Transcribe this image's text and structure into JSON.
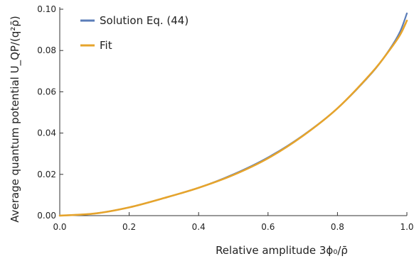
{
  "chart_data": {
    "type": "line",
    "xlabel": "Relative amplitude  3ϕ₀/ρ̄",
    "ylabel": "Average quantum potential  U_QP/(q²ρ̄)",
    "xlim": [
      0.0,
      1.0
    ],
    "ylim": [
      0.0,
      0.1
    ],
    "xticks": [
      "0.0",
      "0.2",
      "0.4",
      "0.6",
      "0.8",
      "1.0"
    ],
    "yticks": [
      "0.00",
      "0.02",
      "0.04",
      "0.06",
      "0.08",
      "0.10"
    ],
    "grid": false,
    "legend_position": "top-left",
    "series": [
      {
        "name": "Solution Eq. (44)",
        "color": "#5b7db8",
        "x": [
          0.0,
          0.1,
          0.2,
          0.3,
          0.4,
          0.5,
          0.6,
          0.7,
          0.8,
          0.9,
          0.95,
          0.98,
          1.0
        ],
        "y": [
          0.0,
          0.001,
          0.004,
          0.0085,
          0.0135,
          0.02,
          0.0282,
          0.0388,
          0.052,
          0.0693,
          0.0805,
          0.089,
          0.098
        ]
      },
      {
        "name": "Fit",
        "color": "#e6a42c",
        "x": [
          0.0,
          0.1,
          0.2,
          0.3,
          0.4,
          0.5,
          0.6,
          0.7,
          0.8,
          0.9,
          0.95,
          0.98,
          1.0
        ],
        "y": [
          0.0,
          0.001,
          0.004,
          0.0085,
          0.0135,
          0.0197,
          0.0278,
          0.0386,
          0.052,
          0.0695,
          0.0802,
          0.0875,
          0.0945
        ]
      }
    ]
  }
}
